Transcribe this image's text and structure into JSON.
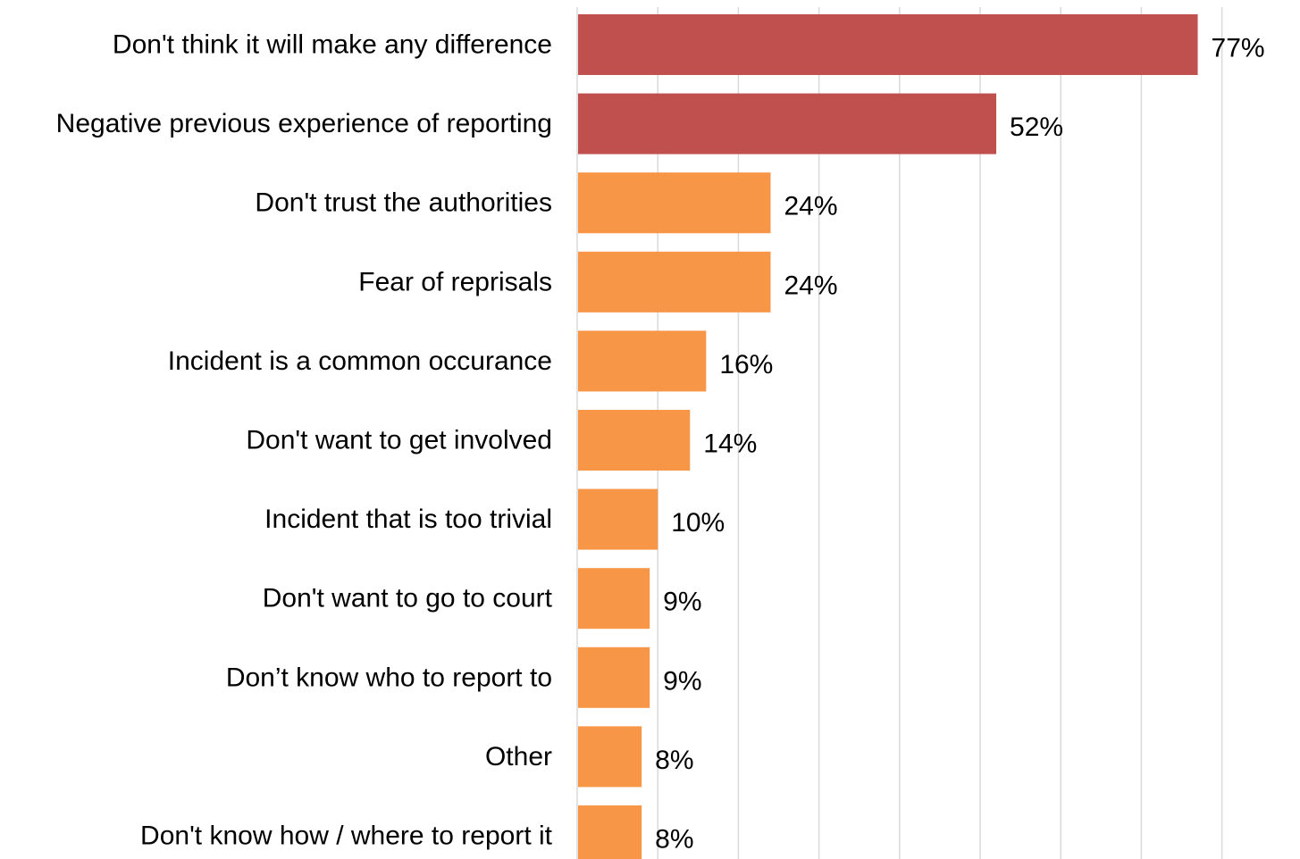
{
  "chart_data": {
    "type": "bar",
    "orientation": "horizontal",
    "categories": [
      "Don't think it will make any difference",
      "Negative previous experience of reporting",
      "Don't trust the authorities",
      "Fear of reprisals",
      "Incident is a common occurance",
      "Don't want to get involved",
      "Incident that is too trivial",
      "Don't want to go to court",
      "Don’t know who to report to",
      "Other",
      "Don't know how / where to report it"
    ],
    "values": [
      77,
      52,
      24,
      24,
      16,
      14,
      10,
      9,
      9,
      8,
      8
    ],
    "data_labels": [
      "77%",
      "52%",
      "24%",
      "24%",
      "16%",
      "14%",
      "10%",
      "9%",
      "9%",
      "8%",
      "8%"
    ],
    "highlighted": [
      true,
      true,
      false,
      false,
      false,
      false,
      false,
      false,
      false,
      false,
      false
    ],
    "xlim": [
      0,
      80
    ],
    "grid": "vertical",
    "gridline_step": 10,
    "colors": {
      "highlight": "#C0504D",
      "default": "#F79646",
      "grid": "#D9D9D9"
    }
  }
}
